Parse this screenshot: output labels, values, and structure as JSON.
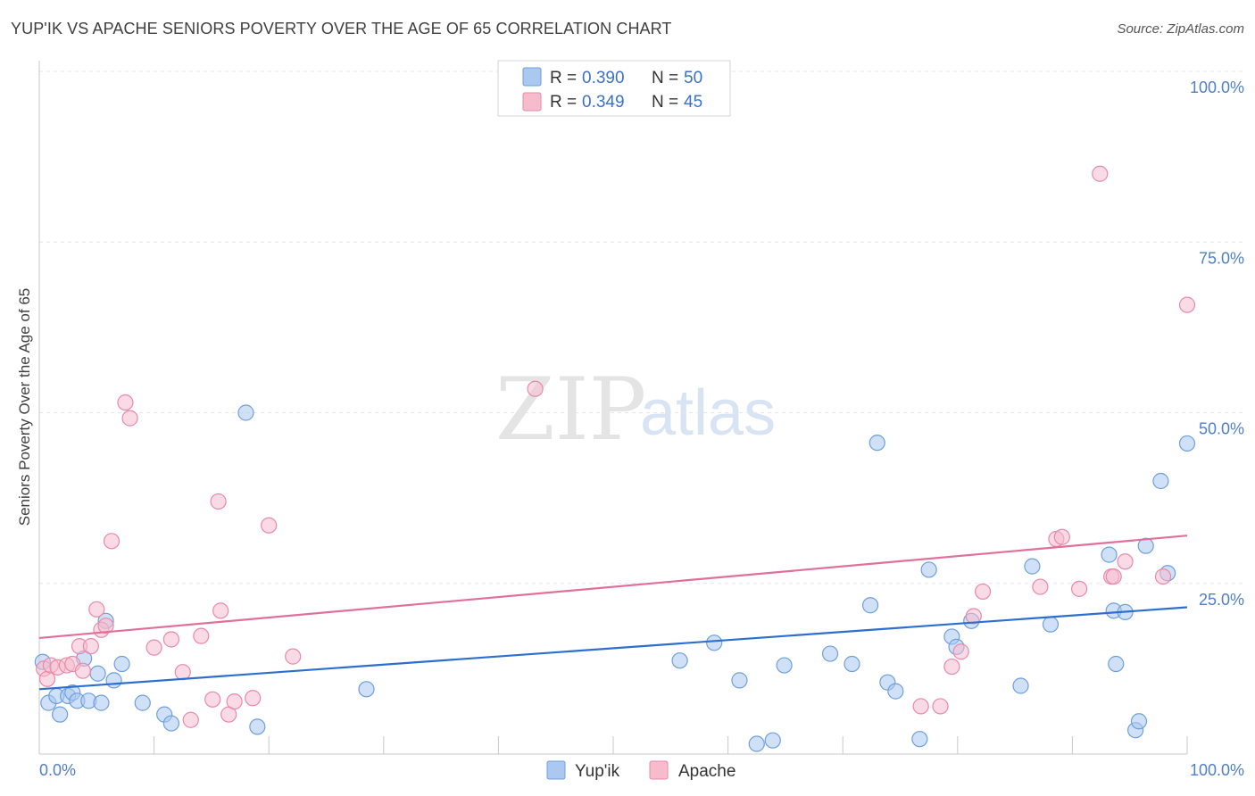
{
  "header": {
    "title": "YUP'IK VS APACHE SENIORS POVERTY OVER THE AGE OF 65 CORRELATION CHART",
    "source": "Source: ZipAtlas.com"
  },
  "watermark": {
    "zip": "ZIP",
    "atlas": "atlas"
  },
  "legend": {
    "r_label": "R =",
    "n_label": "N =",
    "items": [
      {
        "name": "Yup'ik",
        "r": "0.390",
        "n": "50"
      },
      {
        "name": "Apache",
        "r": "0.349",
        "n": "45"
      }
    ]
  },
  "chart_data": {
    "type": "scatter",
    "title": "YUP'IK VS APACHE SENIORS POVERTY OVER THE AGE OF 65 CORRELATION CHART",
    "xlabel": "",
    "ylabel": "Seniors Poverty Over the Age of 65",
    "xlim": [
      0,
      100
    ],
    "ylim": [
      0,
      100
    ],
    "x_tick_labels": [
      "0.0%",
      "100.0%"
    ],
    "y_ticks": [
      25,
      50,
      75,
      100
    ],
    "y_tick_labels": [
      "25.0%",
      "50.0%",
      "75.0%",
      "100.0%"
    ],
    "colors": {
      "Yup'ik": {
        "fill": "#aac8f0",
        "stroke": "#6f9fdc",
        "line": "#2c6fce"
      },
      "Apache": {
        "fill": "#f6bccd",
        "stroke": "#e98aa8",
        "line": "#e0709a"
      }
    },
    "series": [
      {
        "name": "Yup'ik",
        "trend": [
          [
            0,
            9.5
          ],
          [
            100,
            21.5
          ]
        ],
        "points": [
          [
            0.3,
            13.5
          ],
          [
            0.8,
            7.5
          ],
          [
            1.5,
            8.5
          ],
          [
            1.8,
            5.8
          ],
          [
            2.5,
            8.5
          ],
          [
            2.9,
            9.0
          ],
          [
            3.3,
            7.8
          ],
          [
            3.9,
            14.0
          ],
          [
            4.3,
            7.8
          ],
          [
            5.1,
            11.8
          ],
          [
            5.4,
            7.5
          ],
          [
            5.8,
            19.5
          ],
          [
            6.5,
            10.8
          ],
          [
            7.2,
            13.2
          ],
          [
            9.0,
            7.5
          ],
          [
            10.9,
            5.8
          ],
          [
            11.5,
            4.5
          ],
          [
            18.0,
            50.0
          ],
          [
            19.0,
            4.0
          ],
          [
            28.5,
            9.5
          ],
          [
            55.8,
            13.7
          ],
          [
            58.8,
            16.3
          ],
          [
            61.0,
            10.8
          ],
          [
            62.5,
            1.5
          ],
          [
            63.9,
            2.0
          ],
          [
            64.9,
            13.0
          ],
          [
            68.9,
            14.7
          ],
          [
            70.8,
            13.2
          ],
          [
            72.4,
            21.8
          ],
          [
            73.0,
            45.6
          ],
          [
            73.9,
            10.5
          ],
          [
            74.6,
            9.2
          ],
          [
            76.7,
            2.2
          ],
          [
            77.5,
            27.0
          ],
          [
            79.5,
            17.2
          ],
          [
            79.9,
            15.7
          ],
          [
            81.2,
            19.5
          ],
          [
            85.5,
            10.0
          ],
          [
            86.5,
            27.5
          ],
          [
            88.1,
            19.0
          ],
          [
            93.2,
            29.2
          ],
          [
            93.6,
            21.0
          ],
          [
            93.8,
            13.2
          ],
          [
            94.6,
            20.8
          ],
          [
            95.5,
            3.5
          ],
          [
            95.8,
            4.8
          ],
          [
            96.4,
            30.5
          ],
          [
            97.7,
            40.0
          ],
          [
            98.3,
            26.5
          ],
          [
            100.0,
            45.5
          ]
        ]
      },
      {
        "name": "Apache",
        "trend": [
          [
            0,
            17.0
          ],
          [
            100,
            32.0
          ]
        ],
        "points": [
          [
            0.4,
            12.5
          ],
          [
            0.7,
            11.0
          ],
          [
            1.0,
            13.0
          ],
          [
            1.6,
            12.7
          ],
          [
            2.4,
            13.0
          ],
          [
            2.9,
            13.2
          ],
          [
            3.5,
            15.8
          ],
          [
            3.8,
            12.2
          ],
          [
            4.5,
            15.8
          ],
          [
            5.0,
            21.2
          ],
          [
            5.4,
            18.2
          ],
          [
            5.8,
            18.8
          ],
          [
            6.3,
            31.2
          ],
          [
            7.5,
            51.5
          ],
          [
            7.9,
            49.2
          ],
          [
            10.0,
            15.6
          ],
          [
            11.5,
            16.8
          ],
          [
            12.5,
            12.0
          ],
          [
            13.2,
            5.0
          ],
          [
            14.1,
            17.3
          ],
          [
            15.1,
            8.0
          ],
          [
            15.6,
            37.0
          ],
          [
            15.8,
            21.0
          ],
          [
            16.5,
            5.8
          ],
          [
            17.0,
            7.7
          ],
          [
            18.6,
            8.2
          ],
          [
            20.0,
            33.5
          ],
          [
            22.1,
            14.3
          ],
          [
            43.2,
            53.5
          ],
          [
            76.8,
            7.0
          ],
          [
            78.5,
            7.0
          ],
          [
            79.5,
            12.8
          ],
          [
            80.3,
            15.0
          ],
          [
            81.4,
            20.2
          ],
          [
            82.2,
            23.8
          ],
          [
            87.2,
            24.5
          ],
          [
            88.6,
            31.5
          ],
          [
            89.1,
            31.8
          ],
          [
            90.6,
            24.2
          ],
          [
            92.4,
            85.0
          ],
          [
            93.4,
            26.0
          ],
          [
            93.6,
            26.0
          ],
          [
            94.6,
            28.2
          ],
          [
            97.9,
            26.0
          ],
          [
            100.0,
            65.8
          ]
        ]
      }
    ]
  }
}
